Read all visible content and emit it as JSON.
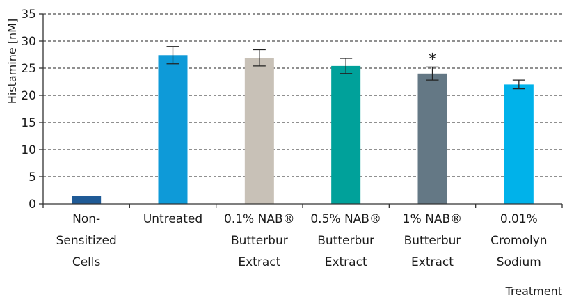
{
  "chart_data": {
    "type": "bar",
    "title": "",
    "xlabel": "Treatment",
    "ylabel": "Histamine [nM]",
    "ylim": [
      0,
      35
    ],
    "yticks": [
      0,
      5,
      10,
      15,
      20,
      25,
      30,
      35
    ],
    "grid": true,
    "categories": [
      [
        "Non-",
        "Sensitized",
        "Cells"
      ],
      [
        "Untreated"
      ],
      [
        "0.1% NAB®",
        "Butterbur",
        "Extract"
      ],
      [
        "0.5% NAB®",
        "Butterbur",
        "Extract"
      ],
      [
        "1% NAB®",
        "Butterbur",
        "Extract"
      ],
      [
        "0.01%",
        "Cromolyn",
        "Sodium"
      ]
    ],
    "values": [
      1.5,
      27.4,
      26.9,
      25.4,
      24.0,
      22.0
    ],
    "errors": [
      0,
      1.6,
      1.5,
      1.4,
      1.2,
      0.8
    ],
    "colors": [
      "#1f5a96",
      "#0e9ad8",
      "#c8c1b7",
      "#00a19a",
      "#647885",
      "#00b2ea"
    ],
    "annotations": [
      {
        "category_index": 4,
        "text": "*"
      }
    ]
  }
}
